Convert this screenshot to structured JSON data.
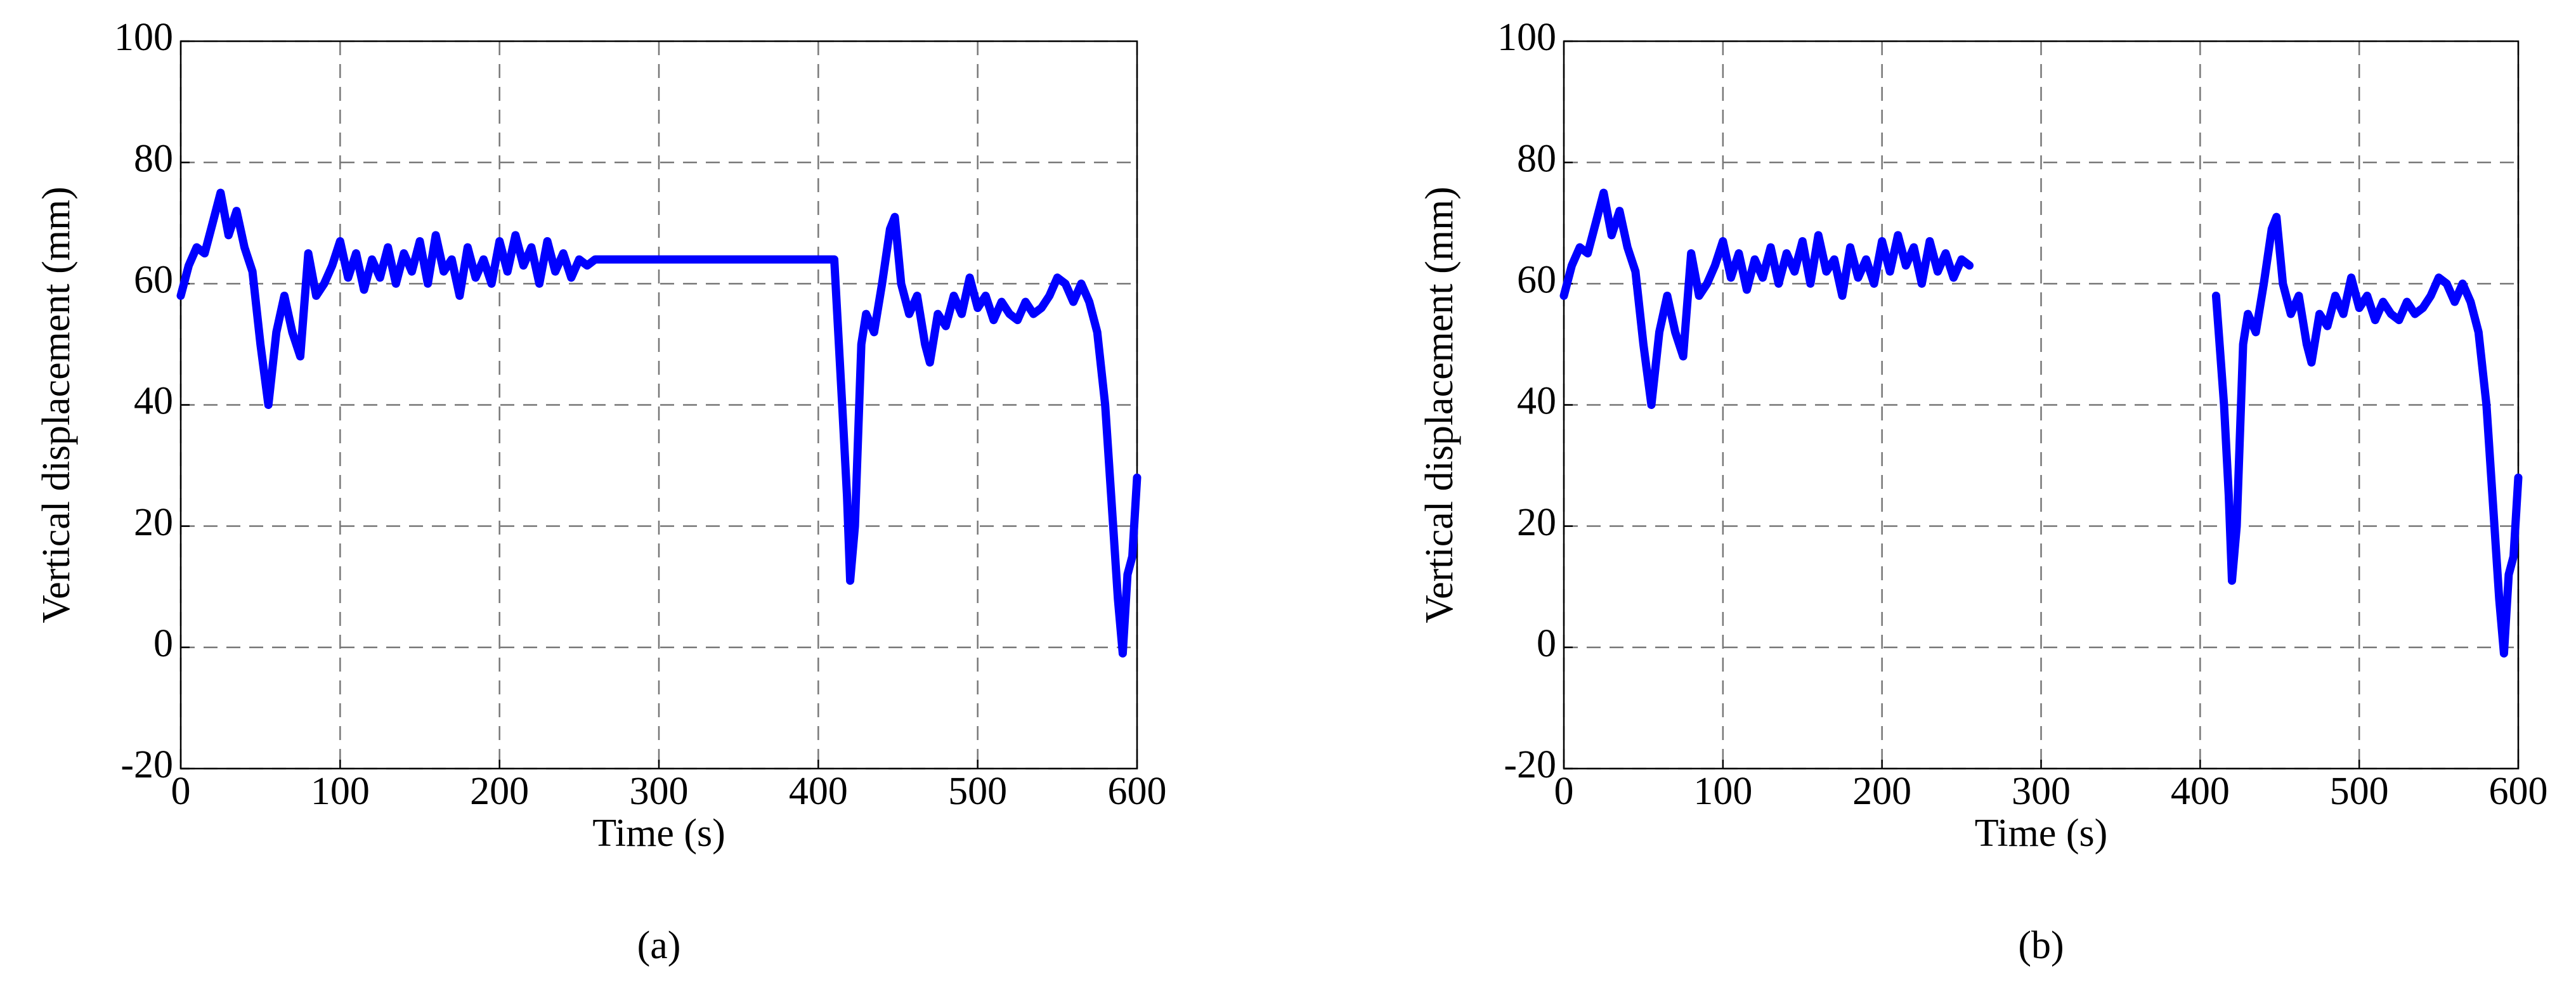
{
  "chart_data": [
    {
      "type": "line",
      "xlabel": "Time (s)",
      "ylabel": "Vertical displacement (mm)",
      "caption": "(a)",
      "xlim": [
        0,
        600
      ],
      "xticks": [
        0,
        100,
        200,
        300,
        400,
        500,
        600
      ],
      "ylim": [
        -20,
        100
      ],
      "yticks": [
        -20,
        0,
        20,
        40,
        60,
        80,
        100
      ],
      "grid": true,
      "x": [
        0,
        5,
        10,
        15,
        20,
        25,
        30,
        35,
        40,
        45,
        50,
        55,
        60,
        65,
        70,
        75,
        80,
        85,
        90,
        95,
        100,
        105,
        110,
        115,
        120,
        125,
        130,
        135,
        140,
        145,
        150,
        155,
        160,
        165,
        170,
        175,
        180,
        185,
        190,
        195,
        200,
        205,
        210,
        215,
        220,
        225,
        230,
        235,
        240,
        245,
        250,
        255,
        260,
        410,
        415,
        418,
        420,
        423,
        427,
        430,
        435,
        440,
        445,
        448,
        452,
        457,
        462,
        467,
        470,
        475,
        480,
        485,
        490,
        495,
        500,
        505,
        510,
        515,
        520,
        525,
        530,
        535,
        540,
        545,
        550,
        555,
        560,
        565,
        570,
        575,
        580,
        585,
        588,
        591,
        594,
        597,
        600
      ],
      "series": [
        {
          "name": "Vertical displacement",
          "color": "#0000ff",
          "values": [
            58,
            63,
            66,
            65,
            70,
            75,
            68,
            72,
            66,
            62,
            50,
            40,
            52,
            58,
            52,
            48,
            65,
            58,
            60,
            63,
            67,
            61,
            65,
            59,
            64,
            61,
            66,
            60,
            65,
            62,
            67,
            60,
            68,
            62,
            64,
            58,
            66,
            61,
            64,
            60,
            67,
            62,
            68,
            63,
            66,
            60,
            67,
            62,
            65,
            61,
            64,
            63,
            64,
            64,
            40,
            25,
            11,
            20,
            50,
            55,
            52,
            60,
            69,
            71,
            60,
            55,
            58,
            50,
            47,
            55,
            53,
            58,
            55,
            61,
            56,
            58,
            54,
            57,
            55,
            54,
            57,
            55,
            56,
            58,
            61,
            60,
            57,
            60,
            57,
            52,
            40,
            20,
            8,
            -1,
            12,
            15,
            28
          ]
        }
      ]
    },
    {
      "type": "line",
      "xlabel": "Time (s)",
      "ylabel": "Vertical displacement (mm)",
      "caption": "(b)",
      "xlim": [
        0,
        600
      ],
      "xticks": [
        0,
        100,
        200,
        300,
        400,
        500,
        600
      ],
      "ylim": [
        -20,
        100
      ],
      "yticks": [
        -20,
        0,
        20,
        40,
        60,
        80,
        100
      ],
      "grid": true,
      "x": [
        0,
        5,
        10,
        15,
        20,
        25,
        30,
        35,
        40,
        45,
        50,
        55,
        60,
        65,
        70,
        75,
        80,
        85,
        90,
        95,
        100,
        105,
        110,
        115,
        120,
        125,
        130,
        135,
        140,
        145,
        150,
        155,
        160,
        165,
        170,
        175,
        180,
        185,
        190,
        195,
        200,
        205,
        210,
        215,
        220,
        225,
        230,
        235,
        240,
        245,
        250,
        255,
        260,
        410,
        415,
        418,
        420,
        423,
        427,
        430,
        435,
        440,
        445,
        448,
        452,
        457,
        462,
        467,
        470,
        475,
        480,
        485,
        490,
        495,
        500,
        505,
        510,
        515,
        520,
        525,
        530,
        535,
        540,
        545,
        550,
        555,
        560,
        565,
        570,
        575,
        580,
        585,
        588,
        591,
        594,
        597,
        600
      ],
      "series": [
        {
          "name": "Vertical displacement",
          "color": "#0000ff",
          "values": [
            58,
            63,
            66,
            65,
            70,
            75,
            68,
            72,
            66,
            62,
            50,
            40,
            52,
            58,
            52,
            48,
            65,
            58,
            60,
            63,
            67,
            61,
            65,
            59,
            64,
            61,
            66,
            60,
            65,
            62,
            67,
            60,
            68,
            62,
            64,
            58,
            66,
            61,
            64,
            60,
            67,
            62,
            68,
            63,
            66,
            60,
            67,
            62,
            65,
            61,
            64,
            63,
            null,
            58,
            40,
            25,
            11,
            20,
            50,
            55,
            52,
            60,
            69,
            71,
            60,
            55,
            58,
            50,
            47,
            55,
            53,
            58,
            55,
            61,
            56,
            58,
            54,
            57,
            55,
            54,
            57,
            55,
            56,
            58,
            61,
            60,
            57,
            60,
            57,
            52,
            40,
            20,
            8,
            -1,
            12,
            15,
            28
          ]
        }
      ]
    }
  ]
}
